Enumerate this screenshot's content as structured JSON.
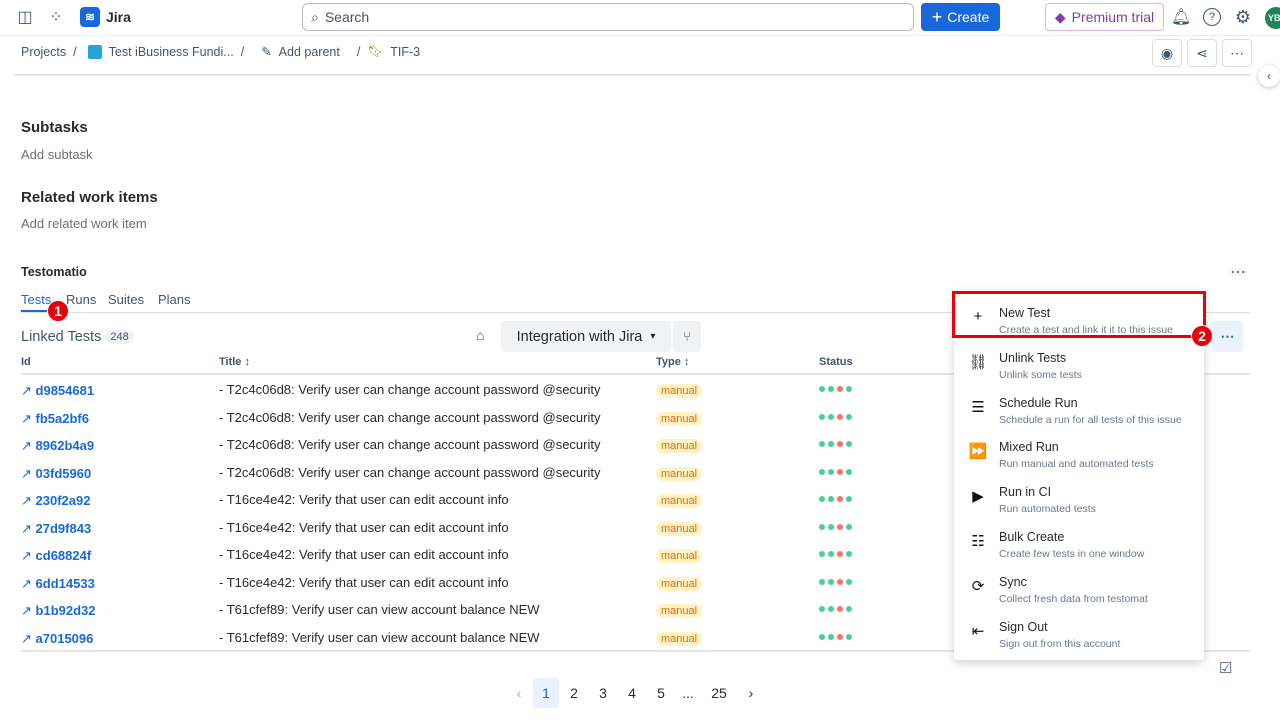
{
  "topbar": {
    "app_name": "Jira",
    "search_placeholder": "Search",
    "create_label": "Create",
    "premium_label": "Premium trial",
    "avatar_initials": "YB"
  },
  "breadcrumb": {
    "projects": "Projects",
    "project": "Test iBusiness Fundi...",
    "add_parent": "Add parent",
    "issue": "TIF-3"
  },
  "sections": {
    "subtasks_title": "Subtasks",
    "subtasks_action": "Add subtask",
    "related_title": "Related work items",
    "related_action": "Add related work item"
  },
  "testomatio": {
    "title": "Testomatio",
    "tabs": [
      "Tests",
      "Runs",
      "Suites",
      "Plans"
    ],
    "active_tab": "Tests",
    "linked_label": "Linked Tests",
    "linked_count": "248",
    "suite_selector": "Integration with Jira",
    "columns": {
      "id": "Id",
      "title": "Title",
      "type": "Type",
      "status": "Status"
    },
    "rows": [
      {
        "id": "d9854681",
        "title": "- T2c4c06d8: Verify user can change account password @security",
        "type": "manual"
      },
      {
        "id": "fb5a2bf6",
        "title": "- T2c4c06d8: Verify user can change account password @security",
        "type": "manual"
      },
      {
        "id": "8962b4a9",
        "title": "- T2c4c06d8: Verify user can change account password @security",
        "type": "manual"
      },
      {
        "id": "03fd5960",
        "title": "- T2c4c06d8: Verify user can change account password @security",
        "type": "manual"
      },
      {
        "id": "230f2a92",
        "title": "- T16ce4e42: Verify that user can edit account info",
        "type": "manual"
      },
      {
        "id": "27d9f843",
        "title": "- T16ce4e42: Verify that user can edit account info",
        "type": "manual"
      },
      {
        "id": "cd68824f",
        "title": "- T16ce4e42: Verify that user can edit account info",
        "type": "manual"
      },
      {
        "id": "6dd14533",
        "title": "- T16ce4e42: Verify that user can edit account info",
        "type": "manual"
      },
      {
        "id": "b1b92d32",
        "title": "- T61cfef89: Verify user can view account balance NEW",
        "type": "manual"
      },
      {
        "id": "a7015096",
        "title": "- T61cfef89: Verify user can view account balance NEW",
        "type": "manual"
      }
    ],
    "status_colors": [
      "#4bce97",
      "#4bce97",
      "#f87462",
      "#4bce97"
    ],
    "pagination": [
      "1",
      "2",
      "3",
      "4",
      "5",
      "...",
      "25"
    ],
    "current_page": "1"
  },
  "menu": [
    {
      "label": "New Test",
      "sub": "Create a test and link it it to this issue",
      "icon": "plus-icon",
      "glyph": "+"
    },
    {
      "label": "Unlink Tests",
      "sub": "Unlink some tests",
      "icon": "unlink-icon",
      "glyph": "⛓"
    },
    {
      "label": "Schedule Run",
      "sub": "Schedule a run for all tests of this issue",
      "icon": "schedule-list-icon",
      "glyph": "☰"
    },
    {
      "label": "Mixed Run",
      "sub": "Run manual and automated tests",
      "icon": "fast-forward-icon",
      "glyph": "⏩"
    },
    {
      "label": "Run in CI",
      "sub": "Run automated tests",
      "icon": "play-icon",
      "glyph": "▶"
    },
    {
      "label": "Bulk Create",
      "sub": "Create few tests in one window",
      "icon": "list-icon",
      "glyph": "☷"
    },
    {
      "label": "Sync",
      "sub": "Collect fresh data from testomat",
      "icon": "sync-icon",
      "glyph": "⟳"
    },
    {
      "label": "Sign Out",
      "sub": "Sign out from this account",
      "icon": "sign-out-icon",
      "glyph": "⇤"
    }
  ],
  "annotations": [
    "1",
    "2"
  ],
  "colors": {
    "accent": "#1868db",
    "highlight": "#e8000b"
  }
}
